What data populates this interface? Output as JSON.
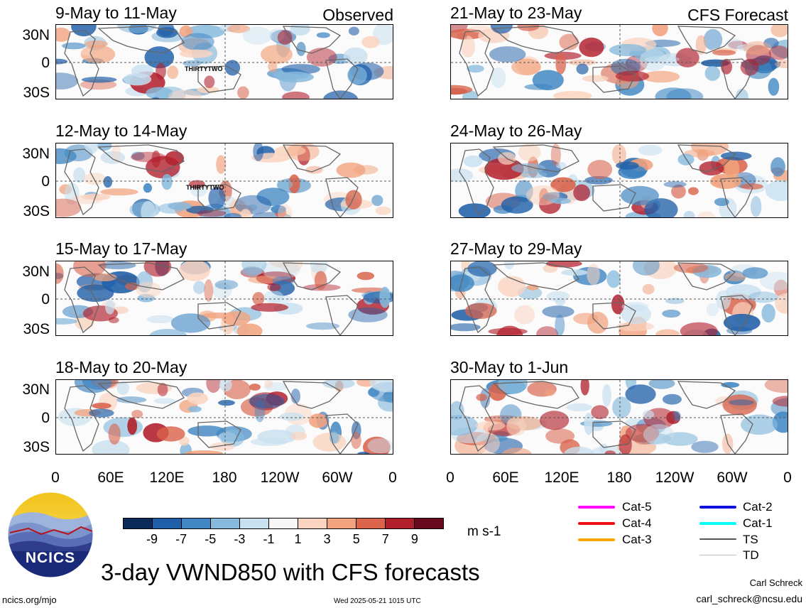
{
  "observed_label": "Observed",
  "forecast_label": "CFS Forecast",
  "panels_left": [
    {
      "title": "9-May to 11-May",
      "storm": "THIRTYTWO"
    },
    {
      "title": "12-May to 14-May",
      "storm": "THIRTYTWO"
    },
    {
      "title": "15-May to 17-May",
      "storm": ""
    },
    {
      "title": "18-May to 20-May",
      "storm": ""
    }
  ],
  "panels_right": [
    {
      "title": "21-May to 23-May"
    },
    {
      "title": "24-May to 26-May"
    },
    {
      "title": "27-May to 29-May"
    },
    {
      "title": "30-May to 1-Jun"
    }
  ],
  "lat_labels": [
    "30N",
    "0",
    "30S"
  ],
  "lon_labels": [
    "0",
    "60E",
    "120E",
    "180",
    "120W",
    "60W",
    "0"
  ],
  "colorbar": {
    "colors": [
      "#0b2a58",
      "#1f5fa8",
      "#3f86c2",
      "#86b9dc",
      "#c9e0ef",
      "#f7f7f7",
      "#fad4c0",
      "#f2a37e",
      "#d9634b",
      "#b21f2c",
      "#680a1e"
    ],
    "labels": [
      "-9",
      "-7",
      "-5",
      "-3",
      "-1",
      "1",
      "3",
      "5",
      "7",
      "9"
    ],
    "units": "m s-1"
  },
  "legend": [
    {
      "label": "Cat-5",
      "color": "#ff00ff"
    },
    {
      "label": "Cat-4",
      "color": "#ee1111"
    },
    {
      "label": "Cat-3",
      "color": "#ffa500"
    },
    {
      "label": "Cat-2",
      "color": "#1111dd"
    },
    {
      "label": "Cat-1",
      "color": "#00ffff"
    },
    {
      "label": "TS",
      "color": "#555555"
    },
    {
      "label": "TD",
      "color": "#bbbbbb"
    }
  ],
  "logo_text": "NCICS",
  "main_title": "3-day VWND850 with CFS forecasts",
  "url": "ncics.org/mjo",
  "timestamp": "Wed 2025-05-21 1015 UTC",
  "author": "Carl Schreck",
  "email": "carl_schreck@ncsu.edu"
}
